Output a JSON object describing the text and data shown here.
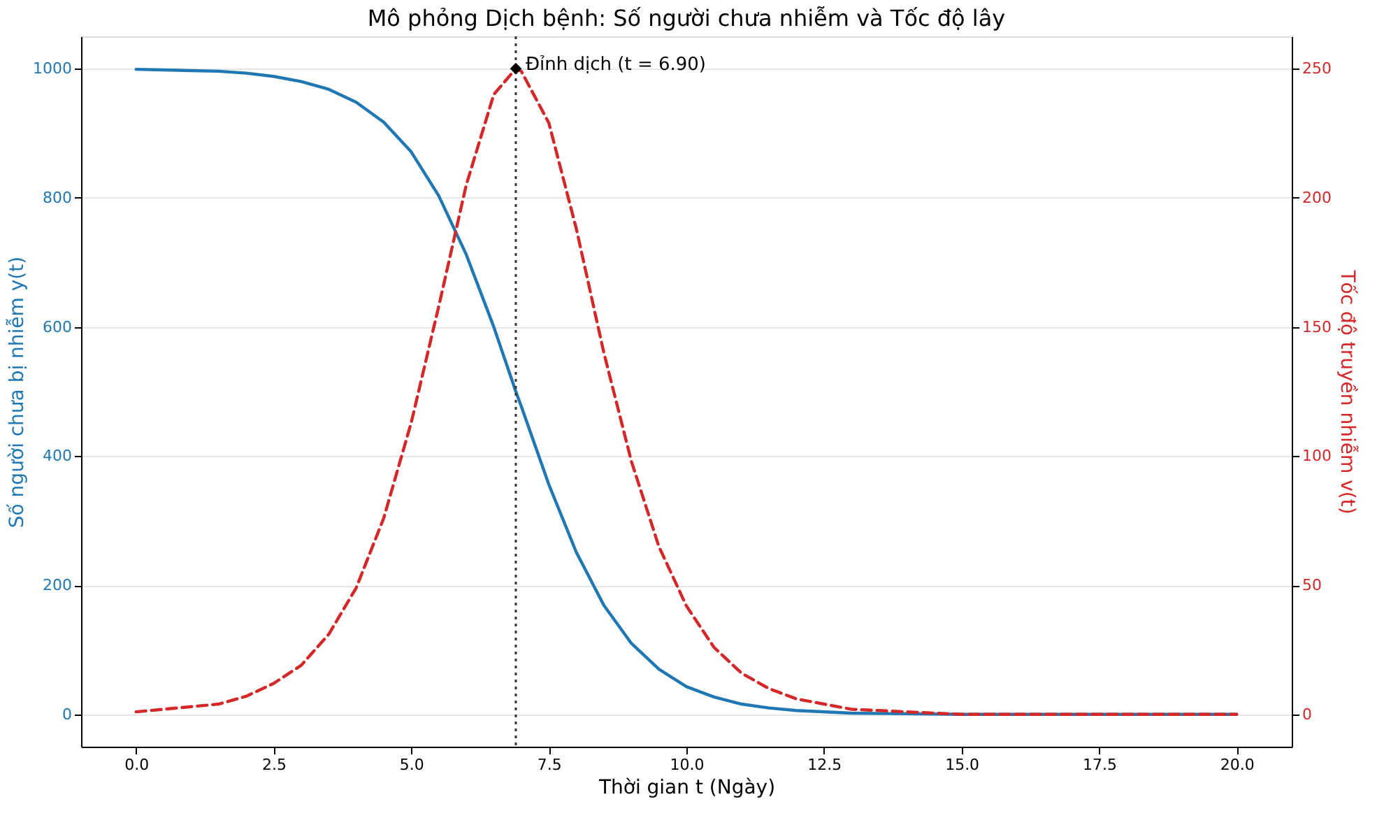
{
  "chart_data": {
    "type": "line",
    "title": "Mô phỏng Dịch bệnh: Số người chưa nhiễm và Tốc độ lây",
    "xlabel": "Thời gian t (Ngày)",
    "ylabel": "Số người chưa bị nhiễm y(t)",
    "y2label": "Tốc độ truyền nhiễm v(t)",
    "x": [
      0,
      0.5,
      1,
      1.5,
      2,
      2.5,
      3,
      3.5,
      4,
      4.5,
      5,
      5.5,
      6,
      6.5,
      6.9,
      7,
      7.5,
      8,
      8.5,
      9,
      9.5,
      10,
      10.5,
      11,
      11.5,
      12,
      13,
      14,
      15,
      16,
      17,
      18,
      19,
      20
    ],
    "series": [
      {
        "color": "#1f77b4",
        "line_style": "solid",
        "values": [
          999,
          998,
          997,
          996,
          993,
          988,
          980,
          968,
          948,
          917,
          871,
          803,
          712,
          600,
          500,
          477,
          356,
          251,
          169,
          110,
          70,
          43,
          27,
          16,
          10,
          6,
          2,
          1,
          0,
          0,
          0,
          0,
          0,
          0
        ]
      },
      {
        "color": "#d62728",
        "line_style": "dashed",
        "axis": "y2",
        "values": [
          1,
          2,
          3,
          4,
          7,
          12,
          19,
          31,
          49,
          76,
          113,
          158,
          205,
          240,
          250,
          249,
          229,
          188,
          140,
          98,
          65,
          42,
          26,
          16,
          10,
          6,
          2,
          1,
          0,
          0,
          0,
          0,
          0,
          0
        ]
      },
      {
        "type": "scatter",
        "marker": "diamond",
        "color": "#000000",
        "axis": "y2",
        "x": [
          6.9
        ],
        "values": [
          250
        ]
      }
    ],
    "xlim": [
      -1,
      21
    ],
    "xticks": [
      {
        "value": 0,
        "label": "0.0"
      },
      {
        "value": 2.5,
        "label": "2.5"
      },
      {
        "value": 5,
        "label": "5.0"
      },
      {
        "value": 7.5,
        "label": "7.5"
      },
      {
        "value": 10,
        "label": "10.0"
      },
      {
        "value": 12.5,
        "label": "12.5"
      },
      {
        "value": 15,
        "label": "15.0"
      },
      {
        "value": 17.5,
        "label": "17.5"
      },
      {
        "value": 20,
        "label": "20.0"
      }
    ],
    "ylim": [
      -50,
      1050
    ],
    "yticks": [
      0,
      200,
      400,
      600,
      800,
      1000
    ],
    "y2lim": [
      -12.5,
      262.5
    ],
    "y2ticks": [
      0,
      50,
      100,
      150,
      200,
      250
    ],
    "ref_lines": [
      {
        "axis": "x",
        "value": 6.9,
        "color": "#333333",
        "line_style": "dotted"
      }
    ],
    "annotations": [
      "Đỉnh dịch (t = 6.90)"
    ],
    "grid": "y"
  }
}
